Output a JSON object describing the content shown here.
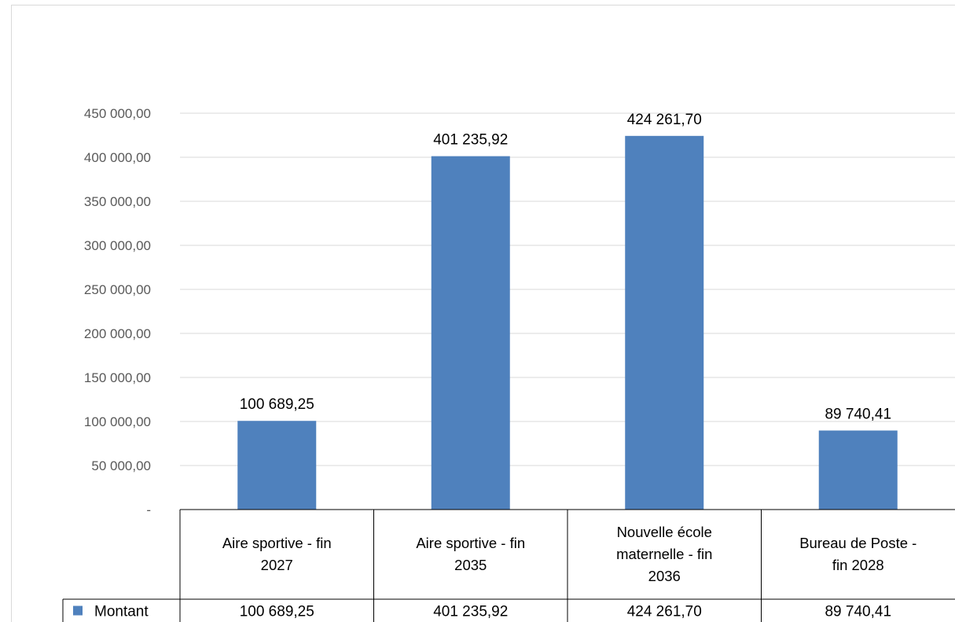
{
  "chart_data": {
    "type": "bar",
    "categories": [
      [
        "Aire sportive - fin",
        "2027"
      ],
      [
        "Aire sportive - fin",
        "2035"
      ],
      [
        "Nouvelle école",
        "maternelle - fin",
        "2036"
      ],
      [
        "Bureau de  Poste -",
        "fin 2028"
      ]
    ],
    "series": [
      {
        "name": "Montant",
        "values": [
          100689.25,
          401235.92,
          424261.7,
          89740.41
        ],
        "labels": [
          "100 689,25",
          "401 235,92",
          "424 261,70",
          "89 740,41"
        ],
        "color": "#4f81bd"
      }
    ],
    "ylim": [
      0,
      450000
    ],
    "yticks": [
      0,
      50000,
      100000,
      150000,
      200000,
      250000,
      300000,
      350000,
      400000,
      450000
    ],
    "ytick_labels": [
      "-",
      "50 000,00",
      "100 000,00",
      "150 000,00",
      "200 000,00",
      "250 000,00",
      "300 000,00",
      "350 000,00",
      "400 000,00",
      "450 000,00"
    ],
    "grid": true,
    "legend_placement": "data-table",
    "data_table": true
  }
}
